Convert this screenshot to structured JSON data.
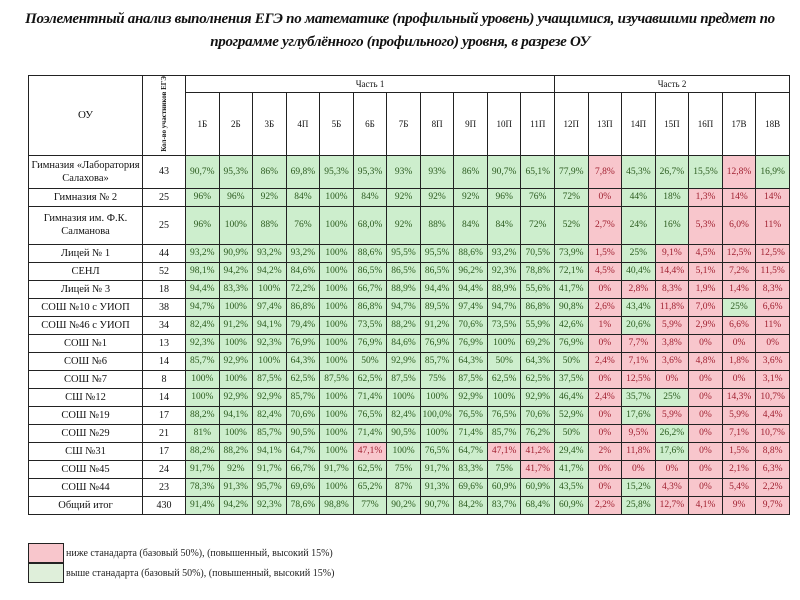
{
  "title": "Поэлементный анализ выполнения ЕГЭ по математике (профильный уровень) учащимися, изучавшими предмет по программе углублённого (профильного) уровня, в разрезе ОУ",
  "header": {
    "ou": "ОУ",
    "count": "Кол-во участников ЕГЭ",
    "part1": "Часть 1",
    "part2": "Часть 2",
    "columns": [
      "1Б",
      "2Б",
      "3Б",
      "4П",
      "5Б",
      "6Б",
      "7Б",
      "8П",
      "9П",
      "10П",
      "11П",
      "12П",
      "13П",
      "14П",
      "15П",
      "16П",
      "17В",
      "18В"
    ]
  },
  "colors": {
    "below": "#f8c6cc",
    "above": "#cdeecd"
  },
  "thresholds": {
    "part1_basic": 50,
    "part2_advanced": 15
  },
  "rows": [
    {
      "ou": "Гимназия «Лаборатория Салахова»",
      "count": "43",
      "values": [
        "90,7%",
        "95,3%",
        "86%",
        "69,8%",
        "95,3%",
        "95,3%",
        "93%",
        "93%",
        "86%",
        "90,7%",
        "65,1%",
        "77,9%",
        "7,8%",
        "45,3%",
        "26,7%",
        "15,5%",
        "12,8%",
        "16,9%"
      ]
    },
    {
      "ou": "Гимназия № 2",
      "count": "25",
      "values": [
        "96%",
        "96%",
        "92%",
        "84%",
        "100%",
        "84%",
        "92%",
        "92%",
        "92%",
        "96%",
        "76%",
        "72%",
        "0%",
        "44%",
        "18%",
        "1,3%",
        "14%",
        "14%"
      ]
    },
    {
      "ou": "Гимназия им. Ф.К. Салманова",
      "count": "25",
      "values": [
        "96%",
        "100%",
        "88%",
        "76%",
        "100%",
        "68,0%",
        "92%",
        "88%",
        "84%",
        "84%",
        "72%",
        "52%",
        "2,7%",
        "24%",
        "16%",
        "5,3%",
        "6,0%",
        "11%"
      ]
    },
    {
      "ou": "Лицей № 1",
      "count": "44",
      "values": [
        "93,2%",
        "90,9%",
        "93,2%",
        "93,2%",
        "100%",
        "88,6%",
        "95,5%",
        "95,5%",
        "88,6%",
        "93,2%",
        "70,5%",
        "73,9%",
        "1,5%",
        "25%",
        "9,1%",
        "4,5%",
        "12,5%",
        "12,5%"
      ]
    },
    {
      "ou": "СЕНЛ",
      "count": "52",
      "values": [
        "98,1%",
        "94,2%",
        "94,2%",
        "84,6%",
        "100%",
        "86,5%",
        "86,5%",
        "86,5%",
        "96,2%",
        "92,3%",
        "78,8%",
        "72,1%",
        "4,5%",
        "40,4%",
        "14,4%",
        "5,1%",
        "7,2%",
        "11,5%"
      ]
    },
    {
      "ou": "Лицей № 3",
      "count": "18",
      "values": [
        "94,4%",
        "83,3%",
        "100%",
        "72,2%",
        "100%",
        "66,7%",
        "88,9%",
        "94,4%",
        "94,4%",
        "88,9%",
        "55,6%",
        "41,7%",
        "0%",
        "2,8%",
        "8,3%",
        "1,9%",
        "1,4%",
        "8,3%"
      ]
    },
    {
      "ou": "СОШ №10 с УИОП",
      "count": "38",
      "values": [
        "94,7%",
        "100%",
        "97,4%",
        "86,8%",
        "100%",
        "86,8%",
        "94,7%",
        "89,5%",
        "97,4%",
        "94,7%",
        "86,8%",
        "90,8%",
        "2,6%",
        "43,4%",
        "11,8%",
        "7,0%",
        "25%",
        "6,6%"
      ]
    },
    {
      "ou": "СОШ №46 с УИОП",
      "count": "34",
      "values": [
        "82,4%",
        "91,2%",
        "94,1%",
        "79,4%",
        "100%",
        "73,5%",
        "88,2%",
        "91,2%",
        "70,6%",
        "73,5%",
        "55,9%",
        "42,6%",
        "1%",
        "20,6%",
        "5,9%",
        "2,9%",
        "6,6%",
        "11%"
      ]
    },
    {
      "ou": "СОШ №1",
      "count": "13",
      "values": [
        "92,3%",
        "100%",
        "92,3%",
        "76,9%",
        "100%",
        "76,9%",
        "84,6%",
        "76,9%",
        "76,9%",
        "100%",
        "69,2%",
        "76,9%",
        "0%",
        "7,7%",
        "3,8%",
        "0%",
        "0%",
        "0%"
      ]
    },
    {
      "ou": "СОШ №6",
      "count": "14",
      "values": [
        "85,7%",
        "92,9%",
        "100%",
        "64,3%",
        "100%",
        "50%",
        "92,9%",
        "85,7%",
        "64,3%",
        "50%",
        "64,3%",
        "50%",
        "2,4%",
        "7,1%",
        "3,6%",
        "4,8%",
        "1,8%",
        "3,6%"
      ]
    },
    {
      "ou": "СОШ №7",
      "count": "8",
      "values": [
        "100%",
        "100%",
        "87,5%",
        "62,5%",
        "87,5%",
        "62,5%",
        "87,5%",
        "75%",
        "87,5%",
        "62,5%",
        "62,5%",
        "37,5%",
        "0%",
        "12,5%",
        "0%",
        "0%",
        "0%",
        "3,1%"
      ]
    },
    {
      "ou": "СШ №12",
      "count": "14",
      "values": [
        "100%",
        "92,9%",
        "92,9%",
        "85,7%",
        "100%",
        "71,4%",
        "100%",
        "100%",
        "92,9%",
        "100%",
        "92,9%",
        "46,4%",
        "2,4%",
        "35,7%",
        "25%",
        "0%",
        "14,3%",
        "10,7%"
      ]
    },
    {
      "ou": "СОШ №19",
      "count": "17",
      "values": [
        "88,2%",
        "94,1%",
        "82,4%",
        "70,6%",
        "100%",
        "76,5%",
        "82,4%",
        "100,0%",
        "76,5%",
        "76,5%",
        "70,6%",
        "52,9%",
        "0%",
        "17,6%",
        "5,9%",
        "0%",
        "5,9%",
        "4,4%"
      ]
    },
    {
      "ou": "СОШ №29",
      "count": "21",
      "values": [
        "81%",
        "100%",
        "85,7%",
        "90,5%",
        "100%",
        "71,4%",
        "90,5%",
        "100%",
        "71,4%",
        "85,7%",
        "76,2%",
        "50%",
        "0%",
        "9,5%",
        "26,2%",
        "0%",
        "7,1%",
        "10,7%"
      ]
    },
    {
      "ou": "СШ №31",
      "count": "17",
      "values": [
        "88,2%",
        "88,2%",
        "94,1%",
        "64,7%",
        "100%",
        "47,1%",
        "100%",
        "76,5%",
        "64,7%",
        "47,1%",
        "41,2%",
        "29,4%",
        "2%",
        "11,8%",
        "17,6%",
        "0%",
        "1,5%",
        "8,8%"
      ]
    },
    {
      "ou": "СОШ №45",
      "count": "24",
      "values": [
        "91,7%",
        "92%",
        "91,7%",
        "66,7%",
        "91,7%",
        "62,5%",
        "75%",
        "91,7%",
        "83,3%",
        "75%",
        "41,7%",
        "41,7%",
        "0%",
        "0%",
        "0%",
        "0%",
        "2,1%",
        "6,3%"
      ]
    },
    {
      "ou": "СОШ №44",
      "count": "23",
      "values": [
        "78,3%",
        "91,3%",
        "95,7%",
        "69,6%",
        "100%",
        "65,2%",
        "87%",
        "91,3%",
        "69,6%",
        "60,9%",
        "60,9%",
        "43,5%",
        "0%",
        "15,2%",
        "4,3%",
        "0%",
        "5,4%",
        "2,2%"
      ]
    },
    {
      "ou": "Общий итог",
      "count": "430",
      "values": [
        "91,4%",
        "94,2%",
        "92,3%",
        "78,6%",
        "98,8%",
        "77%",
        "90,2%",
        "90,7%",
        "84,2%",
        "83,7%",
        "68,4%",
        "60,9%",
        "2,2%",
        "25,8%",
        "12,7%",
        "4,1%",
        "9%",
        "9,7%"
      ]
    }
  ],
  "legend": {
    "below": "ниже станадарта (базовый 50%), (повышенный, высокий 15%)",
    "above": "выше станадарта (базовый 50%), (повышенный, высокий 15%)"
  }
}
